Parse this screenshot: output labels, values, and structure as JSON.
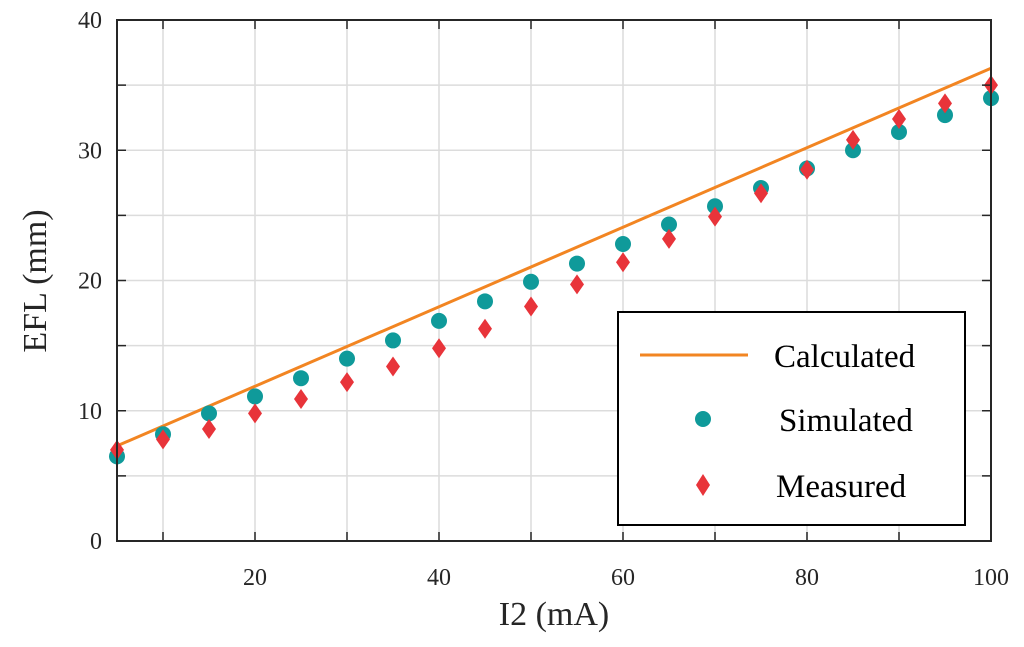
{
  "chart_data": {
    "type": "scatter",
    "title": "",
    "xlabel": "I2 (mA)",
    "ylabel": "EFL (mm)",
    "xlim": [
      5,
      100
    ],
    "ylim": [
      0,
      40
    ],
    "xticks": [
      20,
      40,
      60,
      80,
      100
    ],
    "yticks": [
      0,
      10,
      20,
      30,
      40
    ],
    "grid": true,
    "legend_position": "bottom-right",
    "series": [
      {
        "name": "Calculated",
        "kind": "line",
        "color": "#F28522",
        "x": [
          5,
          100
        ],
        "y": [
          7.3,
          36.3
        ]
      },
      {
        "name": "Simulated",
        "kind": "marker-circle",
        "color": "#0F9A9A",
        "x": [
          5,
          10,
          15,
          20,
          25,
          30,
          35,
          40,
          45,
          50,
          55,
          60,
          65,
          70,
          75,
          80,
          85,
          90,
          95,
          100
        ],
        "y": [
          6.5,
          8.2,
          9.8,
          11.1,
          12.5,
          14.0,
          15.4,
          16.9,
          18.4,
          19.9,
          21.3,
          22.8,
          24.3,
          25.7,
          27.1,
          28.6,
          30.0,
          31.4,
          32.7,
          34.0
        ]
      },
      {
        "name": "Measured",
        "kind": "marker-diamond",
        "color": "#E8343A",
        "x": [
          5,
          10,
          15,
          20,
          25,
          30,
          35,
          40,
          45,
          50,
          55,
          60,
          65,
          70,
          75,
          80,
          85,
          90,
          95,
          100
        ],
        "y": [
          7.0,
          7.8,
          8.6,
          9.8,
          10.9,
          12.2,
          13.4,
          14.8,
          16.3,
          18.0,
          19.7,
          21.4,
          23.2,
          24.9,
          26.7,
          28.5,
          30.8,
          32.4,
          33.6,
          35.0
        ]
      }
    ]
  }
}
